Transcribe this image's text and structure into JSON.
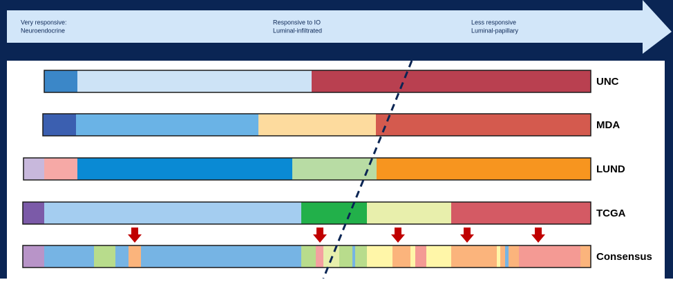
{
  "arrow": {
    "labels": [
      {
        "line1": "Very responsive:",
        "line2": "Neuroendocrine"
      },
      {
        "line1": "Responsive to IO",
        "line2": "Luminal-infiltrated"
      },
      {
        "line1": "Less responsive",
        "line2": "Luminal-papillary"
      }
    ]
  },
  "rows": [
    {
      "label": "UNC"
    },
    {
      "label": "MDA"
    },
    {
      "label": "LUND"
    },
    {
      "label": "TCGA"
    },
    {
      "label": "Consensus"
    }
  ]
}
